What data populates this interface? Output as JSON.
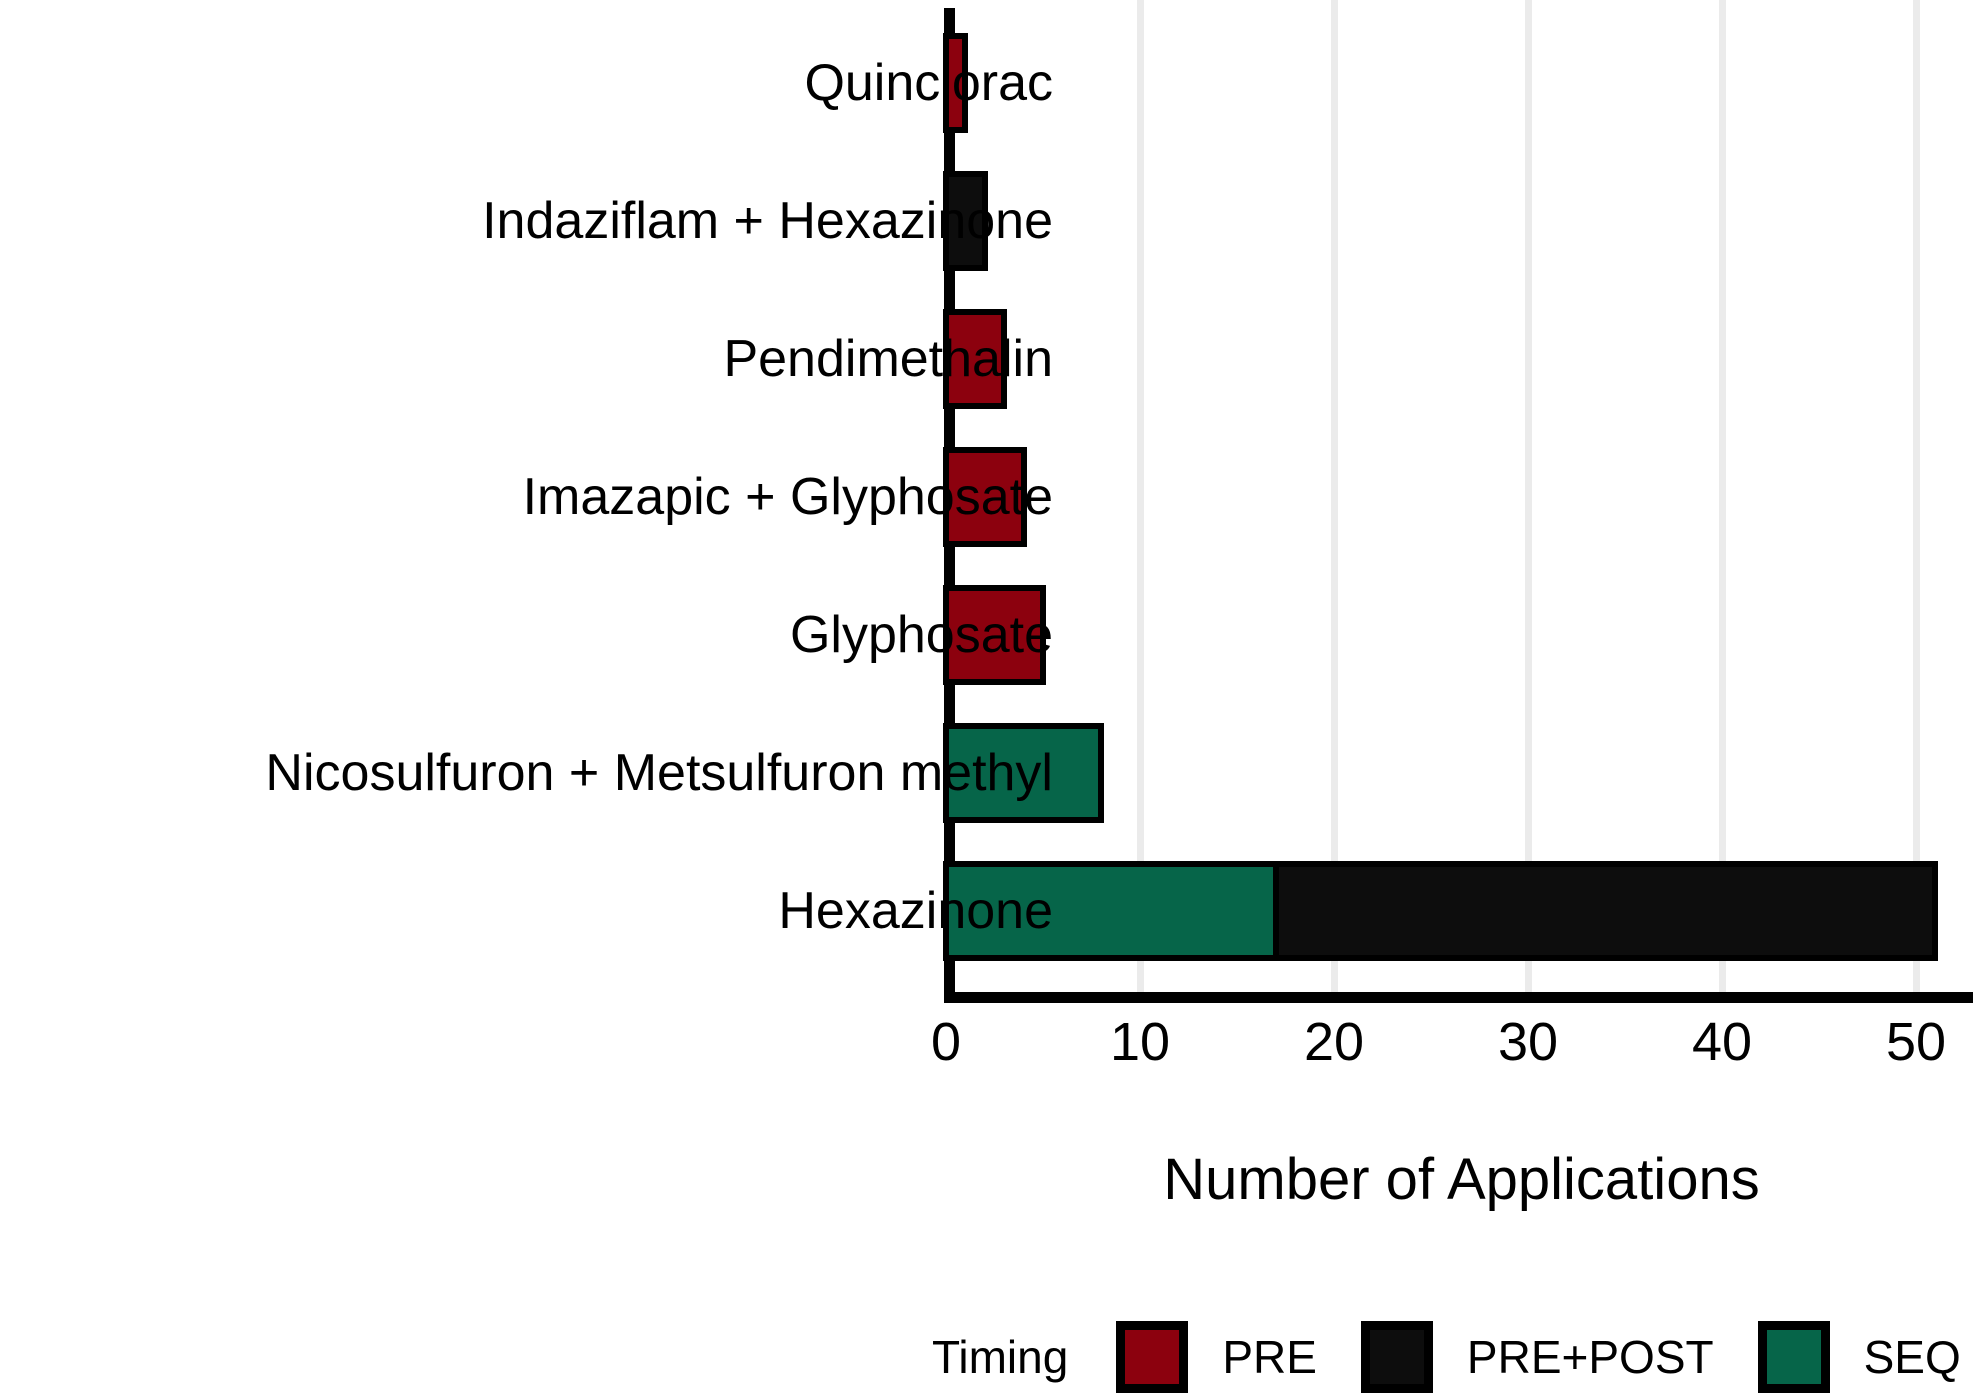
{
  "chart_data": {
    "type": "bar",
    "orientation": "horizontal",
    "stacked": true,
    "xlabel": "Number of Applications",
    "ylabel": "",
    "xlim": [
      0,
      51
    ],
    "x_ticks": [
      "0",
      "10",
      "20",
      "30",
      "40",
      "50"
    ],
    "x_tick_values": [
      0,
      10,
      20,
      30,
      40,
      50
    ],
    "grid": "light vertical gridlines at each x tick, behind bars",
    "categories": [
      "Quinclorac",
      "Indaziflam + Hexazinone",
      "Pendimethalin",
      "Imazapic + Glyphosate",
      "Glyphosate",
      "Nicosulfuron + Metsulfuron methyl",
      "Hexazinone"
    ],
    "series": [
      {
        "name": "PRE",
        "color": "#8C010E",
        "values": [
          1,
          0,
          3,
          4,
          5,
          0,
          0
        ]
      },
      {
        "name": "PRE+POST",
        "color": "#0D0D0D",
        "values": [
          0,
          2,
          0,
          0,
          0,
          0,
          34
        ]
      },
      {
        "name": "SEQ",
        "color": "#066549",
        "values": [
          0,
          0,
          0,
          0,
          0,
          8,
          17
        ]
      }
    ],
    "rows": [
      {
        "label": "Quinclorac",
        "segments": [
          {
            "series": "PRE",
            "value": 1
          }
        ]
      },
      {
        "label": "Indaziflam + Hexazinone",
        "segments": [
          {
            "series": "PRE+POST",
            "value": 2
          }
        ]
      },
      {
        "label": "Pendimethalin",
        "segments": [
          {
            "series": "PRE",
            "value": 3
          }
        ]
      },
      {
        "label": "Imazapic + Glyphosate",
        "segments": [
          {
            "series": "PRE",
            "value": 4
          }
        ]
      },
      {
        "label": "Glyphosate",
        "segments": [
          {
            "series": "PRE",
            "value": 5
          }
        ]
      },
      {
        "label": "Nicosulfuron + Metsulfuron methyl",
        "segments": [
          {
            "series": "SEQ",
            "value": 8
          }
        ]
      },
      {
        "label": "Hexazinone",
        "segments": [
          {
            "series": "SEQ",
            "value": 17
          },
          {
            "series": "PRE+POST",
            "value": 34
          }
        ]
      }
    ],
    "legend": {
      "title": "Timing",
      "entries": [
        "PRE",
        "PRE+POST",
        "SEQ"
      ],
      "position": "bottom-right"
    },
    "colors": {
      "bar_outline": "#000000",
      "axis_line": "#000000",
      "gridline": "#EBEBEB",
      "background": "#FFFFFF",
      "text": "#000000"
    }
  }
}
